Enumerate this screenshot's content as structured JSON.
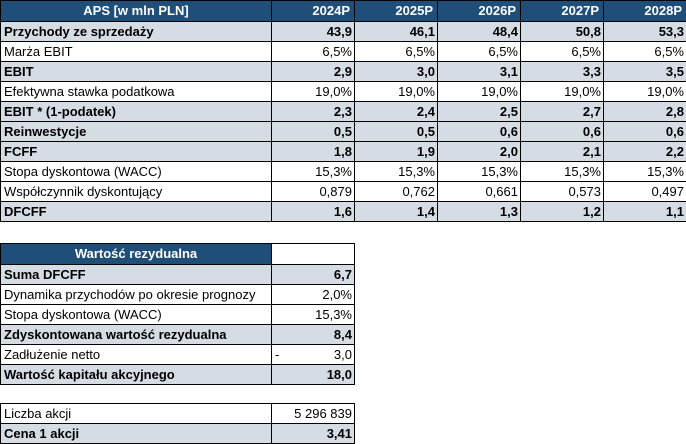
{
  "main": {
    "headers": [
      "APS [w mln PLN]",
      "2024P",
      "2025P",
      "2026P",
      "2027P",
      "2028P"
    ],
    "rows": [
      {
        "label": "Przychody ze sprzedaży",
        "values": [
          "43,9",
          "46,1",
          "48,4",
          "50,8",
          "53,3"
        ]
      },
      {
        "label": "Marża EBIT",
        "values": [
          "6,5%",
          "6,5%",
          "6,5%",
          "6,5%",
          "6,5%"
        ]
      },
      {
        "label": "EBIT",
        "values": [
          "2,9",
          "3,0",
          "3,1",
          "3,3",
          "3,5"
        ]
      },
      {
        "label": "Efektywna stawka podatkowa",
        "values": [
          "19,0%",
          "19,0%",
          "19,0%",
          "19,0%",
          "19,0%"
        ]
      },
      {
        "label": "EBIT * (1-podatek)",
        "values": [
          "2,3",
          "2,4",
          "2,5",
          "2,7",
          "2,8"
        ]
      },
      {
        "label": "Reinwestycje",
        "values": [
          "0,5",
          "0,5",
          "0,6",
          "0,6",
          "0,6"
        ]
      },
      {
        "label": "FCFF",
        "values": [
          "1,8",
          "1,9",
          "2,0",
          "2,1",
          "2,2"
        ]
      },
      {
        "label": "Stopa dyskontowa (WACC)",
        "values": [
          "15,3%",
          "15,3%",
          "15,3%",
          "15,3%",
          "15,3%"
        ]
      },
      {
        "label": "Współczynnik dyskontujący",
        "values": [
          "0,879",
          "0,762",
          "0,661",
          "0,573",
          "0,497"
        ]
      },
      {
        "label": "DFCFF",
        "values": [
          "1,6",
          "1,4",
          "1,3",
          "1,2",
          "1,1"
        ]
      }
    ]
  },
  "residual": {
    "header": "Wartość rezydualna",
    "rows": [
      {
        "label": "Suma DFCFF",
        "value": "6,7",
        "prefix": ""
      },
      {
        "label": "Dynamika przychodów po okresie prognozy",
        "value": "2,0%",
        "prefix": ""
      },
      {
        "label": "Stopa dyskontowa (WACC)",
        "value": "15,3%",
        "prefix": ""
      },
      {
        "label": "Zdyskontowana wartość rezydualna",
        "value": "8,4",
        "prefix": ""
      },
      {
        "label": "Zadłużenie netto",
        "value": "3,0",
        "prefix": "-"
      },
      {
        "label": "Wartość kapitału akcyjnego",
        "value": "18,0",
        "prefix": ""
      }
    ]
  },
  "shares": {
    "rows": [
      {
        "label": "Liczba akcji",
        "value": "5 296 839"
      },
      {
        "label": "Cena 1 akcji",
        "value": "3,41"
      }
    ]
  }
}
